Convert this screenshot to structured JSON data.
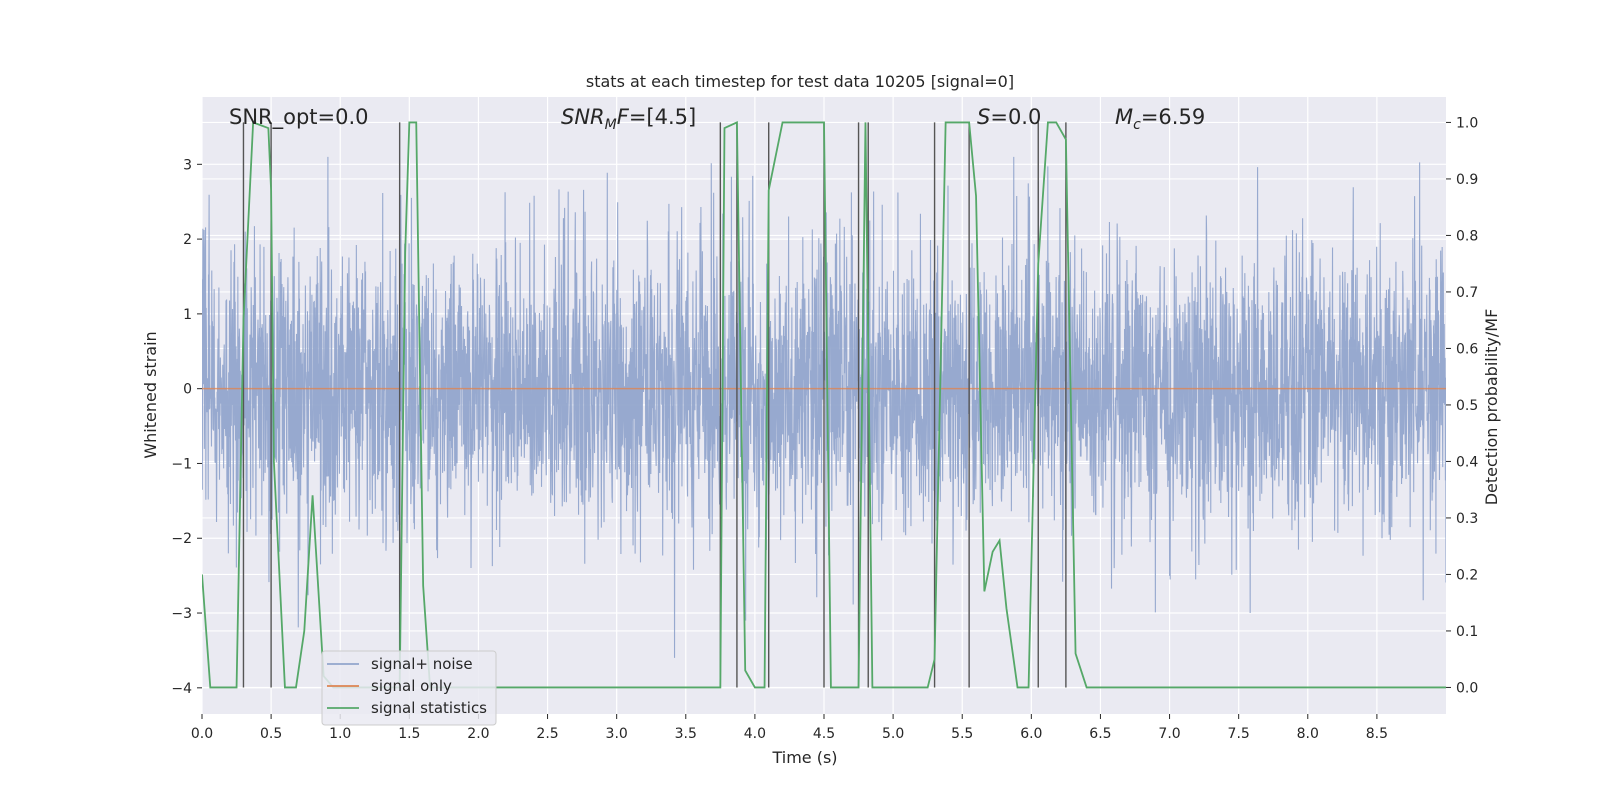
{
  "chart_data": {
    "type": "line",
    "title": "stats at each timestep for test data 10205 [signal=0]",
    "xlabel": "Time (s)",
    "ylabel": "Whitened strain",
    "y2label": "Detection probability/MF",
    "xlim": [
      0,
      9
    ],
    "ylim": [
      -4.35,
      3.9
    ],
    "y2lim": [
      -0.047,
      1.045
    ],
    "xticks": [
      0.0,
      0.5,
      1.0,
      1.5,
      2.0,
      2.5,
      3.0,
      3.5,
      4.0,
      4.5,
      5.0,
      5.5,
      6.0,
      6.5,
      7.0,
      7.5,
      8.0,
      8.5
    ],
    "xtick_labels": [
      "0.0",
      "0.5",
      "1.0",
      "1.5",
      "2.0",
      "2.5",
      "3.0",
      "3.5",
      "4.0",
      "4.5",
      "5.0",
      "5.5",
      "6.0",
      "6.5",
      "7.0",
      "7.5",
      "8.0",
      "8.5"
    ],
    "yticks": [
      -4,
      -3,
      -2,
      -1,
      0,
      1,
      2,
      3
    ],
    "ytick_labels": [
      "−4",
      "−3",
      "−2",
      "−1",
      "0",
      "1",
      "2",
      "3"
    ],
    "y2ticks": [
      0.0,
      0.1,
      0.2,
      0.3,
      0.4,
      0.5,
      0.6,
      0.7,
      0.8,
      0.9,
      1.0
    ],
    "y2tick_labels": [
      "0.0",
      "0.1",
      "0.2",
      "0.3",
      "0.4",
      "0.5",
      "0.6",
      "0.7",
      "0.8",
      "0.9",
      "1.0"
    ],
    "grid": true,
    "legend": {
      "location": "lower-left",
      "entries": [
        "signal+ noise",
        "signal only",
        "signal statistics"
      ]
    },
    "colors": {
      "noise": "#92a5cc",
      "signal": "#dd8452",
      "stats": "#55a868",
      "vline": "#555555",
      "background": "#eaeaf2",
      "grid": "#ffffff"
    },
    "annotations": {
      "snr_opt": {
        "name": "SNR_opt",
        "value": "=0.0"
      },
      "snr_mf": {
        "base": "SNR",
        "sub": "M",
        "rest": "F",
        "value": "=[4.5]"
      },
      "s": {
        "name": "S",
        "value": "=0.0"
      },
      "mc": {
        "base": "M",
        "sub": "c",
        "value": "=6.59"
      }
    },
    "noise_envelope": {
      "note": "whitened strain noise, approx gaussian, dense band between about -1.7 and 1.7 with spikes",
      "typical_max": 3.1,
      "typical_min": -3.6,
      "seed": 10205
    },
    "series": [
      {
        "name": "signal only",
        "x": [
          0.0,
          9.0
        ],
        "y": [
          0.0,
          0.0
        ]
      },
      {
        "name": "signal statistics",
        "x": [
          0.0,
          0.06,
          0.25,
          0.3,
          0.37,
          0.48,
          0.5,
          0.52,
          0.6,
          0.68,
          0.74,
          0.8,
          0.88,
          0.95,
          1.05,
          1.43,
          1.47,
          1.5,
          1.55,
          1.6,
          1.65,
          1.8,
          3.5,
          3.75,
          3.78,
          3.87,
          3.93,
          4.0,
          4.07,
          4.1,
          4.2,
          4.5,
          4.55,
          4.75,
          4.8,
          4.85,
          4.9,
          5.0,
          5.25,
          5.3,
          5.38,
          5.55,
          5.6,
          5.66,
          5.72,
          5.77,
          5.82,
          5.9,
          5.98,
          6.05,
          6.12,
          6.18,
          6.25,
          6.32,
          6.4,
          6.6,
          9.0
        ],
        "y": [
          0.2,
          0.0,
          0.0,
          0.65,
          1.0,
          0.99,
          0.88,
          0.4,
          0.0,
          0.0,
          0.1,
          0.34,
          0.02,
          0.0,
          0.0,
          0.0,
          0.77,
          1.0,
          1.0,
          0.18,
          0.0,
          0.0,
          0.0,
          0.0,
          0.99,
          1.0,
          0.03,
          0.0,
          0.0,
          0.88,
          1.0,
          1.0,
          0.0,
          0.0,
          1.0,
          0.0,
          0.0,
          0.0,
          0.0,
          0.05,
          1.0,
          1.0,
          0.87,
          0.17,
          0.24,
          0.26,
          0.14,
          0.0,
          0.0,
          0.75,
          1.0,
          1.0,
          0.97,
          0.06,
          0.0,
          0.0,
          0.0
        ]
      }
    ],
    "vlines": [
      0.3,
      0.5,
      1.43,
      3.75,
      3.87,
      4.1,
      4.5,
      4.75,
      4.82,
      5.3,
      5.55,
      6.05,
      6.25
    ]
  }
}
